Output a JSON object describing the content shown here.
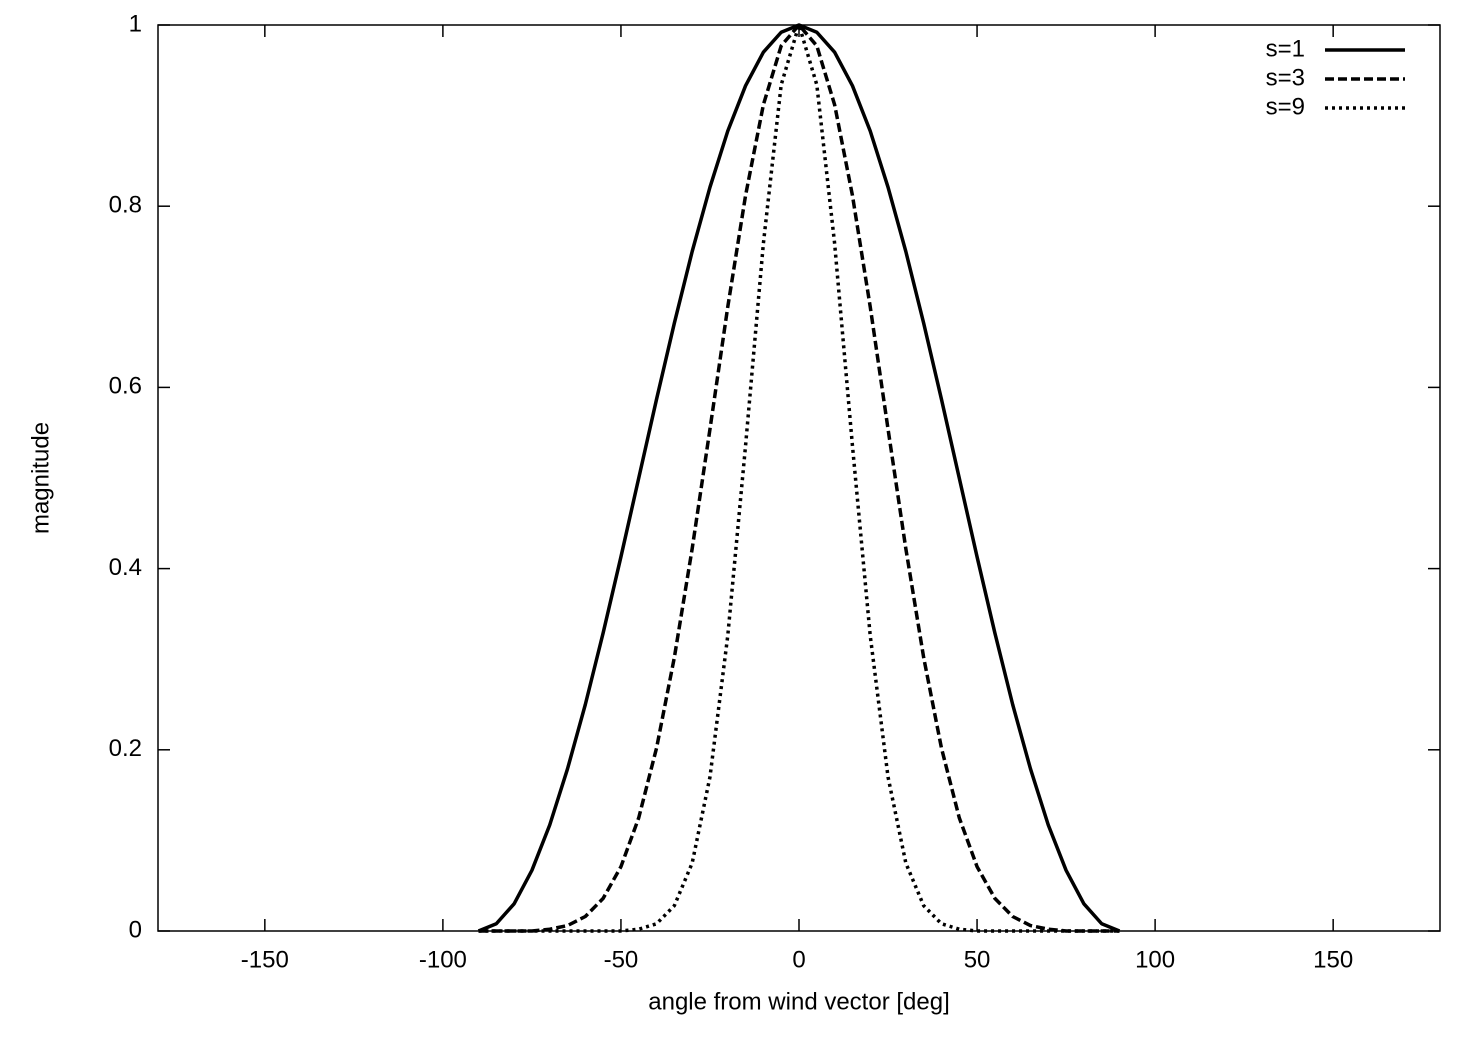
{
  "chart_data": {
    "type": "line",
    "x_label": "angle from wind vector [deg]",
    "y_label": "magnitude",
    "x": [
      -90,
      -85,
      -80,
      -75,
      -70,
      -65,
      -60,
      -55,
      -50,
      -45,
      -40,
      -35,
      -30,
      -25,
      -20,
      -15,
      -10,
      -5,
      0,
      5,
      10,
      15,
      20,
      25,
      30,
      35,
      40,
      45,
      50,
      55,
      60,
      65,
      70,
      75,
      80,
      85,
      90
    ],
    "series": [
      {
        "name": "s=1",
        "color": "#000000",
        "style": "solid",
        "values": [
          0,
          0.008,
          0.03,
          0.067,
          0.117,
          0.179,
          0.25,
          0.329,
          0.413,
          0.5,
          0.587,
          0.671,
          0.75,
          0.821,
          0.883,
          0.933,
          0.97,
          0.992,
          1,
          0.992,
          0.97,
          0.933,
          0.883,
          0.821,
          0.75,
          0.671,
          0.587,
          0.5,
          0.413,
          0.329,
          0.25,
          0.179,
          0.117,
          0.067,
          0.03,
          0.008,
          0
        ]
      },
      {
        "name": "s=3",
        "color": "#000000",
        "style": "dashed",
        "values": [
          0,
          0,
          0,
          0,
          0.002,
          0.006,
          0.016,
          0.036,
          0.071,
          0.125,
          0.202,
          0.302,
          0.422,
          0.554,
          0.689,
          0.812,
          0.912,
          0.977,
          1,
          0.977,
          0.912,
          0.812,
          0.689,
          0.554,
          0.422,
          0.302,
          0.202,
          0.125,
          0.071,
          0.036,
          0.016,
          0.006,
          0.002,
          0,
          0,
          0,
          0
        ]
      },
      {
        "name": "s=9",
        "color": "#000000",
        "style": "dotted",
        "values": [
          0,
          0,
          0,
          0,
          0,
          0,
          0,
          0,
          0,
          0.002,
          0.008,
          0.028,
          0.075,
          0.17,
          0.326,
          0.536,
          0.759,
          0.934,
          1,
          0.934,
          0.759,
          0.536,
          0.326,
          0.17,
          0.075,
          0.028,
          0.008,
          0.002,
          0,
          0,
          0,
          0,
          0,
          0,
          0,
          0,
          0
        ]
      }
    ],
    "xlim": [
      -180,
      180
    ],
    "xticks": [
      -150,
      -100,
      -50,
      0,
      50,
      100,
      150
    ],
    "ylim": [
      0,
      1
    ],
    "yticks": [
      0,
      0.2,
      0.4,
      0.6,
      0.8,
      1
    ],
    "legend": "top-right",
    "grid": false
  }
}
